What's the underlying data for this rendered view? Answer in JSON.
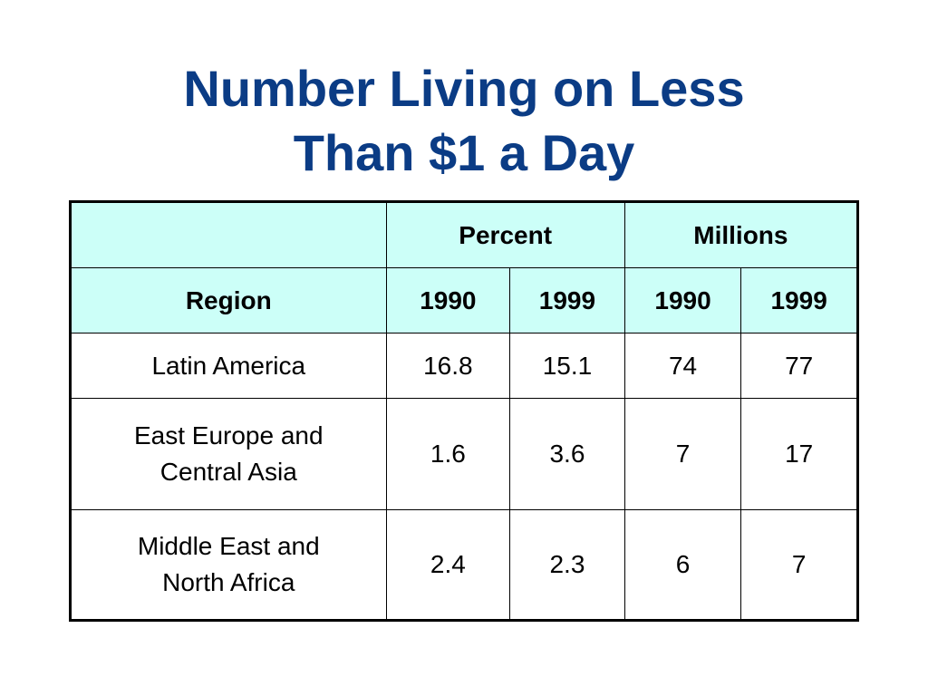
{
  "title": {
    "line1": "Number Living on Less",
    "line2": "Than $1 a Day"
  },
  "colors": {
    "title": "#0b3c85",
    "header_background": "#ccfff8",
    "border": "#000000"
  },
  "table": {
    "group_headers": [
      "",
      "Percent",
      "Millions"
    ],
    "column_headers": [
      "Region",
      "1990",
      "1999",
      "1990",
      "1999"
    ],
    "rows": [
      {
        "region": "Latin America",
        "values": [
          "16.8",
          "15.1",
          "74",
          "77"
        ]
      },
      {
        "region_line1": "East Europe and",
        "region_line2": "Central Asia",
        "values": [
          "1.6",
          "3.6",
          "7",
          "17"
        ]
      },
      {
        "region_line1": "Middle East and",
        "region_line2": "North Africa",
        "values": [
          "2.4",
          "2.3",
          "6",
          "7"
        ]
      }
    ]
  }
}
